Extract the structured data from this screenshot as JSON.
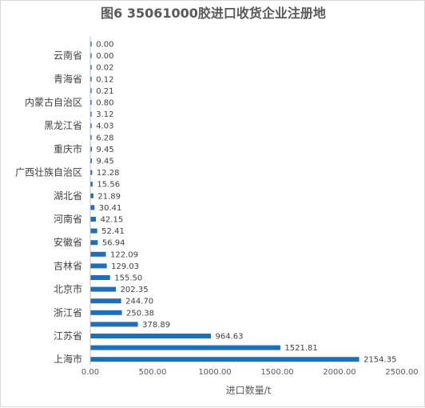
{
  "chart_data": {
    "type": "bar",
    "orientation": "horizontal",
    "title": "图6  35061000胶进口收货企业注册地",
    "xlabel": "进口数量/t",
    "ylabel": "",
    "xlim": [
      0,
      2500
    ],
    "xticks": [
      "0.00",
      "500.00",
      "1000.00",
      "1500.00",
      "2000.00",
      "2500.00"
    ],
    "grid": false,
    "legend": "none",
    "bar_color": "#1f6fb8",
    "categories": [
      "",
      "云南省",
      "",
      "青海省",
      "",
      "内蒙古自治区",
      "",
      "黑龙江省",
      "",
      "重庆市",
      "",
      "广西壮族自治区",
      "",
      "湖北省",
      "",
      "河南省",
      "",
      "安徽省",
      "",
      "吉林省",
      "",
      "北京市",
      "",
      "浙江省",
      "",
      "江苏省",
      "",
      "上海市"
    ],
    "values": [
      0.0,
      0.0,
      0.02,
      0.12,
      0.21,
      0.8,
      3.12,
      4.03,
      6.28,
      9.45,
      9.45,
      12.28,
      15.56,
      21.89,
      30.41,
      42.15,
      52.41,
      56.94,
      122.09,
      129.03,
      155.5,
      202.35,
      244.7,
      250.38,
      378.89,
      964.63,
      1521.81,
      2154.35
    ],
    "value_labels": [
      "0.00",
      "0.00",
      "0.02",
      "0.12",
      "0.21",
      "0.80",
      "3.12",
      "4.03",
      "6.28",
      "9.45",
      "9.45",
      "12.28",
      "15.56",
      "21.89",
      "30.41",
      "42.15",
      "52.41",
      "56.94",
      "122.09",
      "129.03",
      "155.50",
      "202.35",
      "244.70",
      "250.38",
      "378.89",
      "964.63",
      "1521.81",
      "2154.35"
    ]
  }
}
